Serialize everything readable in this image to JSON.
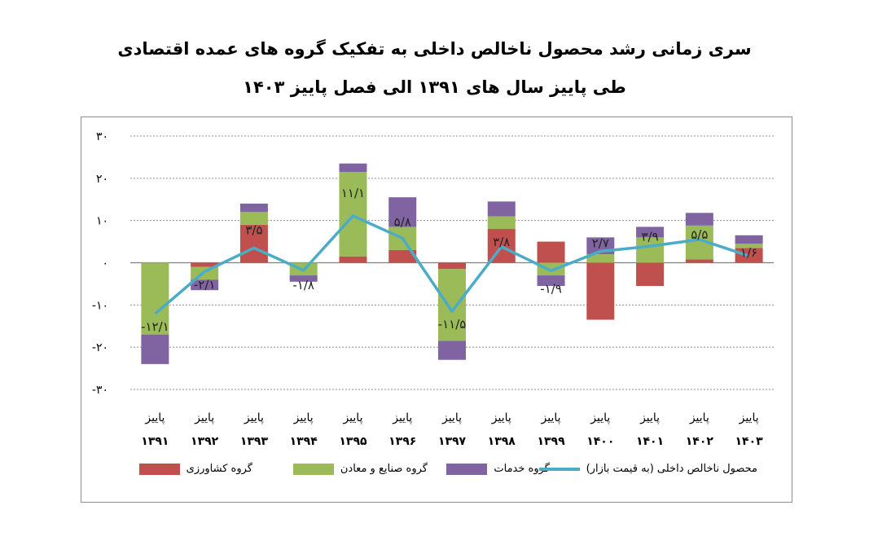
{
  "title_line1": "سری زمانی رشد محصول ناخالص داخلی به تفکیک گروه های عمده اقتصادی",
  "title_line2": "طی پاییز سال های ۱۳۹۱ الی فصل پاییز ۱۴۰۳",
  "chart_data": {
    "type": "bar",
    "stacked": true,
    "season_label": "پاییز",
    "categories": [
      "۱۳۹۱",
      "۱۳۹۲",
      "۱۳۹۳",
      "۱۳۹۴",
      "۱۳۹۵",
      "۱۳۹۶",
      "۱۳۹۷",
      "۱۳۹۸",
      "۱۳۹۹",
      "۱۴۰۰",
      "۱۴۰۱",
      "۱۴۰۲",
      "۱۴۰۳"
    ],
    "yticks": [
      30,
      20,
      10,
      0,
      -10,
      -20,
      -30
    ],
    "ytick_labels": [
      "۳۰",
      "۲۰",
      "۱۰",
      "۰",
      "-۱۰",
      "-۲۰",
      "-۳۰"
    ],
    "ylim": [
      -30,
      30
    ],
    "grid": true,
    "series": [
      {
        "name": "گروه کشاورزی",
        "color": "#c0504d",
        "values": [
          0,
          -1,
          9,
          0,
          1.5,
          3,
          -1.5,
          8,
          5,
          -13.5,
          -5.5,
          0.8,
          3.5
        ]
      },
      {
        "name": "گروه صنایع و معادن",
        "color": "#9bbb59",
        "values": [
          -17,
          -3,
          3,
          -3,
          20,
          5.5,
          -17,
          3,
          -3,
          2,
          6,
          8,
          1
        ]
      },
      {
        "name": "گروه خدمات",
        "color": "#8064a2",
        "values": [
          -7,
          -2.5,
          2,
          -1.5,
          2,
          7,
          -4.5,
          3.5,
          -2.5,
          4,
          2.5,
          3,
          2
        ]
      }
    ],
    "line": {
      "name": "محصول ناخالص داخلی (به قیمت بازار)",
      "color": "#4bacc6",
      "values": [
        -12.1,
        -2.1,
        3.5,
        -1.8,
        11.1,
        5.8,
        -11.5,
        3.8,
        -1.9,
        2.7,
        3.9,
        5.5,
        1.6
      ],
      "labels": [
        "-۱۲/۱",
        "-۲/۱",
        "۳/۵",
        "-۱/۸",
        "۱۱/۱",
        "۵/۸",
        "-۱۱/۵",
        "۳/۸",
        "-۱/۹",
        "۲/۷",
        "۳/۹",
        "۵/۵",
        "۱/۶"
      ]
    },
    "legend_position": "bottom"
  }
}
